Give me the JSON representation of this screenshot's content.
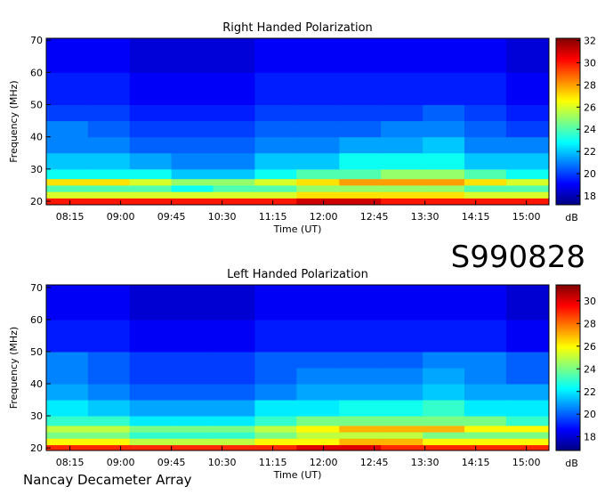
{
  "header": {
    "id": "S990828",
    "footer": "Nancay Decameter Array"
  },
  "chart_data": [
    {
      "type": "heatmap",
      "title": "Right Handed Polarization",
      "xlabel": "Time (UT)",
      "ylabel": "Frequency (MHz)",
      "colorbar_label": "dB",
      "colormap": "jet",
      "xlim": [
        474,
        920
      ],
      "xticks": [
        {
          "value": 495,
          "label": "08:15"
        },
        {
          "value": 540,
          "label": "09:00"
        },
        {
          "value": 585,
          "label": "09:45"
        },
        {
          "value": 630,
          "label": "10:30"
        },
        {
          "value": 675,
          "label": "11:15"
        },
        {
          "value": 720,
          "label": "12:00"
        },
        {
          "value": 765,
          "label": "12:45"
        },
        {
          "value": 810,
          "label": "13:30"
        },
        {
          "value": 855,
          "label": "14:15"
        },
        {
          "value": 900,
          "label": "15:00"
        }
      ],
      "ylim": [
        18.9,
        70.6
      ],
      "yticks": [
        20,
        30,
        40,
        50,
        60,
        70
      ],
      "clim": [
        17.2,
        32.2
      ],
      "cticks": [
        18,
        20,
        22,
        24,
        26,
        28,
        30,
        32
      ],
      "time_bins": [
        474,
        511,
        548,
        585,
        622,
        659,
        696,
        734,
        771,
        808,
        845,
        882,
        920
      ],
      "freq_bins": [
        18.9,
        21,
        23,
        25,
        27,
        30,
        35,
        40,
        45,
        50,
        60,
        70.6
      ],
      "values": [
        [
          30,
          30,
          30,
          30,
          30,
          30,
          31,
          31,
          30,
          30,
          30,
          30
        ],
        [
          26,
          26,
          26,
          26,
          26,
          26,
          27,
          27,
          27,
          27,
          26,
          26
        ],
        [
          24,
          24,
          24,
          23,
          24,
          24,
          25,
          25,
          25,
          25,
          24,
          24
        ],
        [
          27,
          27,
          26,
          25,
          25,
          26,
          27,
          28,
          28,
          28,
          27,
          26
        ],
        [
          23,
          23,
          23,
          22,
          22,
          23,
          24,
          24,
          25,
          25,
          24,
          23
        ],
        [
          22,
          22,
          21.5,
          21,
          21,
          22,
          22,
          23,
          23,
          23,
          22,
          22
        ],
        [
          21,
          21,
          20.5,
          20.5,
          20.5,
          21,
          21,
          21.5,
          21.5,
          22,
          21,
          21
        ],
        [
          21,
          20.5,
          20,
          20,
          20,
          20.5,
          20.5,
          20.5,
          21,
          21,
          20.5,
          20
        ],
        [
          20,
          20,
          19.5,
          19.5,
          19.5,
          20,
          20,
          20,
          20,
          20.5,
          20,
          19.5
        ],
        [
          19.5,
          19.5,
          19,
          19,
          19,
          19.5,
          19.5,
          19.5,
          19.5,
          19.5,
          19.5,
          19
        ],
        [
          19,
          19,
          18.5,
          18.5,
          18.5,
          19,
          19,
          19,
          19,
          19,
          19,
          18.5
        ]
      ]
    },
    {
      "type": "heatmap",
      "title": "Left Handed Polarization",
      "xlabel": "Time (UT)",
      "ylabel": "Frequency (MHz)",
      "colorbar_label": "dB",
      "colormap": "jet",
      "xlim": [
        474,
        920
      ],
      "xticks": [
        {
          "value": 495,
          "label": "08:15"
        },
        {
          "value": 540,
          "label": "09:00"
        },
        {
          "value": 585,
          "label": "09:45"
        },
        {
          "value": 630,
          "label": "10:30"
        },
        {
          "value": 675,
          "label": "11:15"
        },
        {
          "value": 720,
          "label": "12:00"
        },
        {
          "value": 765,
          "label": "12:45"
        },
        {
          "value": 810,
          "label": "13:30"
        },
        {
          "value": 855,
          "label": "14:15"
        },
        {
          "value": 900,
          "label": "15:00"
        }
      ],
      "ylim": [
        19.2,
        70.8
      ],
      "yticks": [
        20,
        30,
        40,
        50,
        60,
        70
      ],
      "clim": [
        16.8,
        31.4
      ],
      "cticks": [
        18,
        20,
        22,
        24,
        26,
        28,
        30
      ],
      "time_bins": [
        474,
        511,
        548,
        585,
        622,
        659,
        696,
        734,
        771,
        808,
        845,
        882,
        920
      ],
      "freq_bins": [
        19.2,
        21,
        23,
        25,
        27,
        30,
        35,
        40,
        45,
        50,
        60,
        70.8
      ],
      "values": [
        [
          29,
          29,
          29,
          29,
          29,
          29,
          30,
          30,
          29,
          29,
          29,
          29
        ],
        [
          26,
          26,
          25,
          25,
          25,
          26,
          26,
          27,
          27,
          26,
          26,
          26
        ],
        [
          24,
          24,
          23,
          23,
          23,
          24,
          25,
          25,
          25,
          24,
          24,
          24
        ],
        [
          25,
          25,
          24,
          24,
          24,
          25,
          26,
          27,
          27,
          27,
          26,
          26
        ],
        [
          23,
          23,
          22,
          22,
          22,
          23,
          24,
          24,
          24,
          24,
          24,
          23
        ],
        [
          22,
          21.5,
          21,
          21,
          21,
          22,
          22,
          22.5,
          22.5,
          23,
          22,
          22
        ],
        [
          21,
          20.5,
          20,
          20,
          20,
          20.5,
          21,
          21,
          21,
          21.5,
          21,
          21
        ],
        [
          20.5,
          20,
          19.5,
          19.5,
          19.5,
          20,
          20.5,
          20.5,
          20.5,
          21,
          20.5,
          20
        ],
        [
          20.5,
          20,
          19.5,
          19.5,
          19.5,
          20,
          20,
          20,
          20,
          20.5,
          20.5,
          20
        ],
        [
          19,
          19,
          18.5,
          18.5,
          18.5,
          19,
          19,
          19,
          19,
          19,
          19,
          18.5
        ],
        [
          18.5,
          18.5,
          18,
          18,
          18,
          18.5,
          18.5,
          18.5,
          18.5,
          18.5,
          18.5,
          18
        ]
      ]
    }
  ]
}
